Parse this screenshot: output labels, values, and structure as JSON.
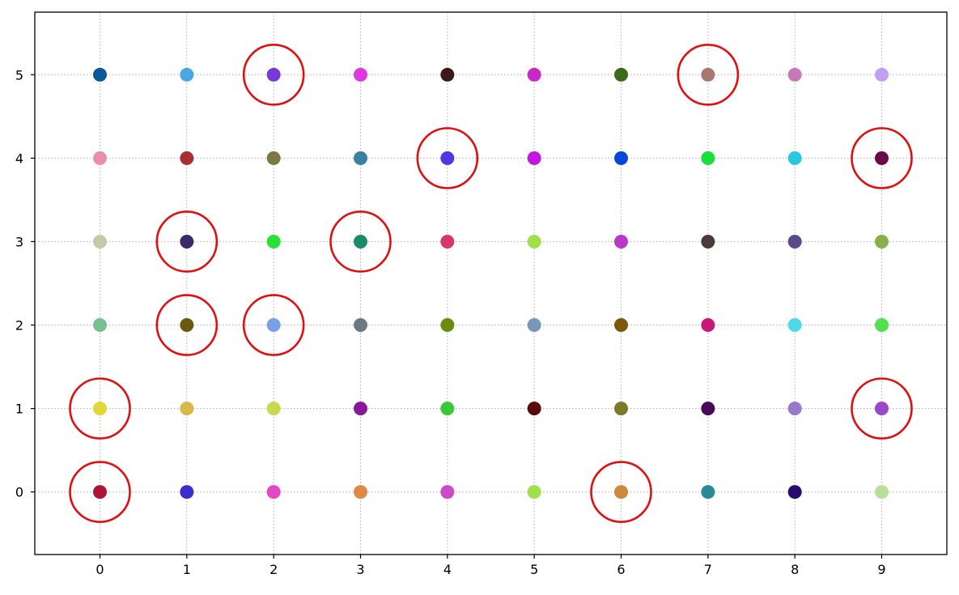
{
  "chart_data": {
    "type": "scatter",
    "title": "",
    "xlabel": "",
    "ylabel": "",
    "xlim": [
      -0.75,
      9.75
    ],
    "ylim": [
      -0.75,
      5.75
    ],
    "x_ticks": [
      "0",
      "1",
      "2",
      "3",
      "4",
      "5",
      "6",
      "7",
      "8",
      "9"
    ],
    "y_ticks": [
      "0",
      "1",
      "2",
      "3",
      "4",
      "5"
    ],
    "grid": true,
    "grid_color": "#b0b0b0",
    "highlight_color": "#e01010",
    "colors": [
      [
        "#ae1338",
        "#3a2fc8",
        "#e048c4",
        "#e08848",
        "#cc4ac8",
        "#a0e048",
        "#d0883a",
        "#2a8a98",
        "#2a0a6c",
        "#b8e098"
      ],
      [
        "#e0d838",
        "#d8b848",
        "#c8d850",
        "#8a189a",
        "#3ac83a",
        "#5a0a0a",
        "#7a7a28",
        "#4a0a5a",
        "#9878c8",
        "#9848c8"
      ],
      [
        "#78c090",
        "#6a5a10",
        "#78a0e8",
        "#6a7a80",
        "#6a8a10",
        "#7898b8",
        "#7a5a08",
        "#c8187a",
        "#50d8e8",
        "#50e050"
      ],
      [
        "#c8c8a8",
        "#3a2a6a",
        "#28e038",
        "#1a8a6a",
        "#d83868",
        "#a0e048",
        "#b838c8",
        "#4a3a3a",
        "#5a4a8a",
        "#88b048"
      ],
      [
        "#e890a8",
        "#a83030",
        "#7a7a40",
        "#3a80a0",
        "#4a3ae0",
        "#c018e0",
        "#0848d8",
        "#18e038",
        "#28c8e0",
        "#6a0a4a"
      ],
      [
        "#0a5898",
        "#48a8e0",
        "#7a38d8",
        "#e038e0",
        "#3a1a1a",
        "#c828c8",
        "#3a6a1a",
        "#a87870",
        "#c878b8",
        "#c0a0f0"
      ]
    ],
    "highlighted": [
      [
        2,
        5
      ],
      [
        7,
        5
      ],
      [
        4,
        4
      ],
      [
        9,
        4
      ],
      [
        1,
        3
      ],
      [
        3,
        3
      ],
      [
        1,
        2
      ],
      [
        2,
        2
      ],
      [
        0,
        1
      ],
      [
        9,
        1
      ],
      [
        0,
        0
      ],
      [
        6,
        0
      ]
    ]
  }
}
